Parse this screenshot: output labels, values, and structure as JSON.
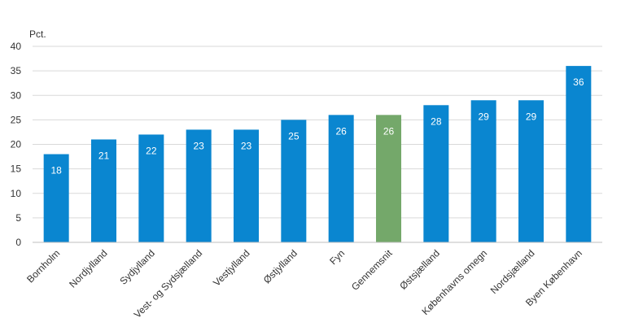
{
  "chart_data": {
    "type": "bar",
    "ylabel": "Pct.",
    "ylim": [
      0,
      40
    ],
    "yticks": [
      0,
      5,
      10,
      15,
      20,
      25,
      30,
      35,
      40
    ],
    "grid": true,
    "categories": [
      "Bornholm",
      "Nordjylland",
      "Sydjylland",
      "Vest- og Sydsjælland",
      "Vestjylland",
      "Østjylland",
      "Fyn",
      "Gennemsnit",
      "Østsjælland",
      "Københavns omegn",
      "Nordsjælland",
      "Byen København"
    ],
    "values": [
      18,
      21,
      22,
      23,
      23,
      25,
      26,
      26,
      28,
      29,
      29,
      36
    ],
    "colors": {
      "default": "#0a86d0",
      "highlight": "#74a86a",
      "grid": "#d9d9d9",
      "axis": "#bfbfbf"
    },
    "highlight_category": "Gennemsnit"
  }
}
